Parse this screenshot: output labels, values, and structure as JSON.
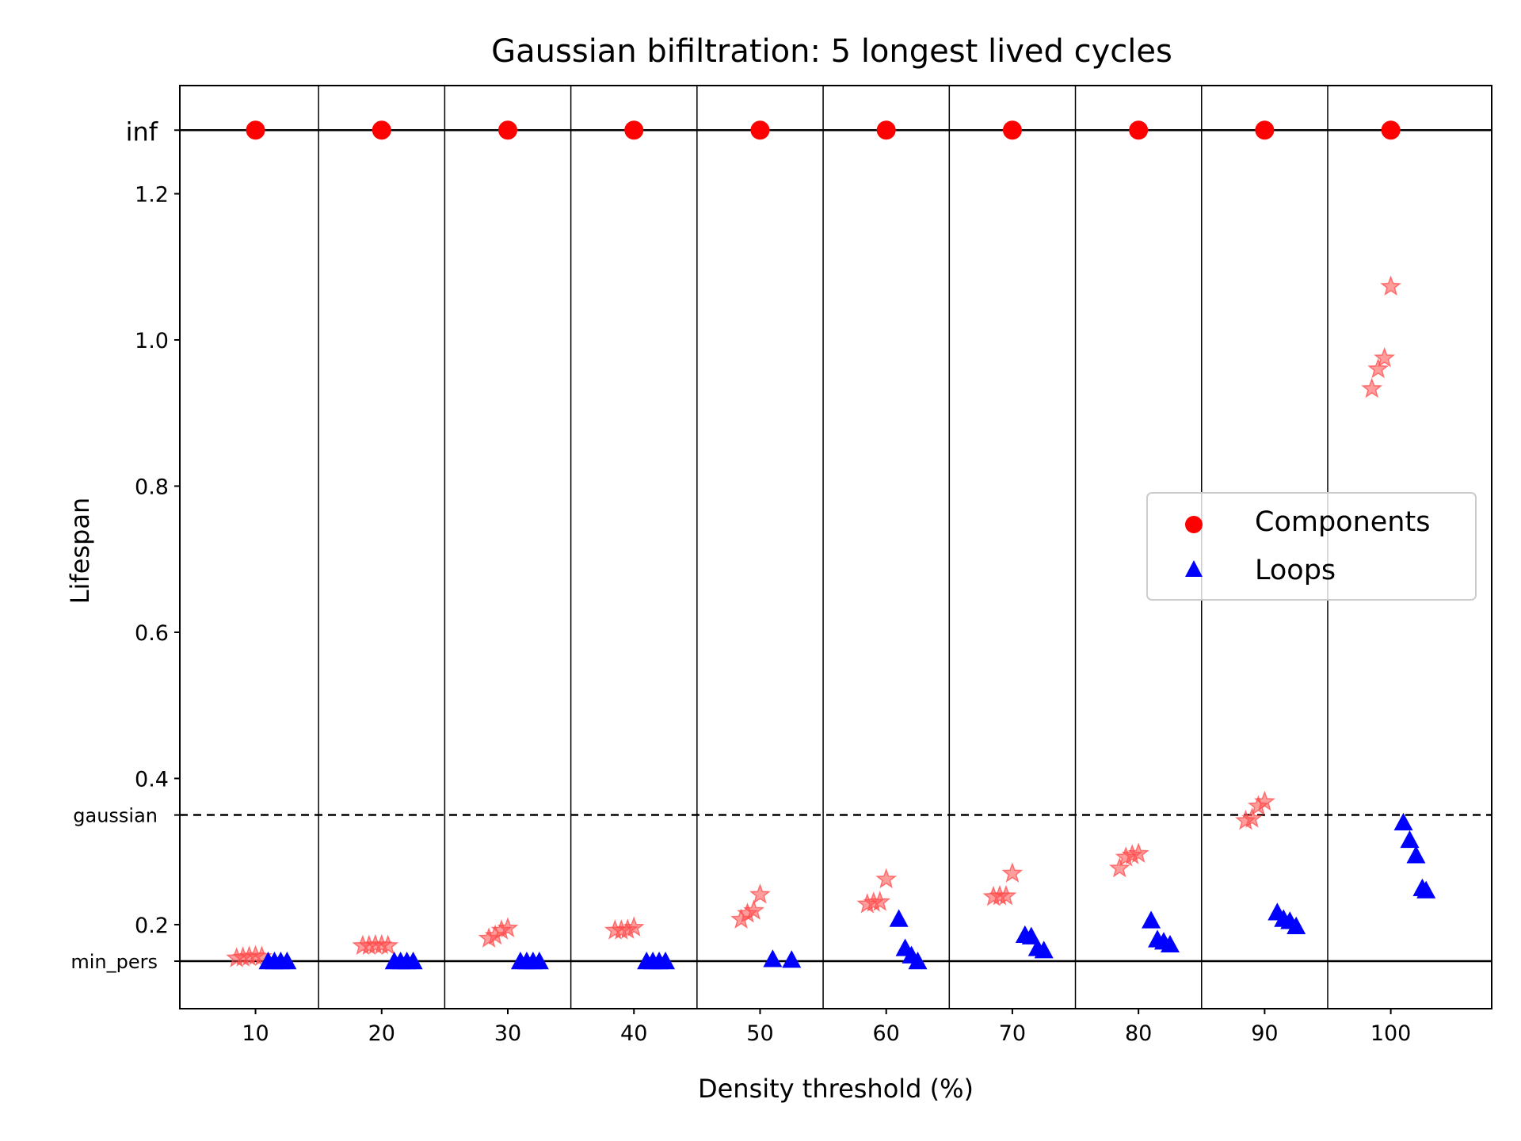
{
  "chart_data": {
    "type": "scatter",
    "title": "Gaussian bifiltration: 5 longest lived cycles",
    "xlabel": "Density threshold (%)",
    "ylabel": "Lifespan",
    "xlim": [
      4,
      108
    ],
    "ylim": [
      0.085,
      1.348
    ],
    "xticks": [
      10,
      20,
      30,
      40,
      50,
      60,
      70,
      80,
      90,
      100
    ],
    "yticks": [
      0.2,
      0.4,
      0.6,
      0.8,
      1.0,
      1.2
    ],
    "ytick_labels": [
      "0.2",
      "0.4",
      "0.6",
      "0.8",
      "1.0",
      "1.2"
    ],
    "group_separators": [
      15,
      25,
      35,
      45,
      55,
      65,
      75,
      85,
      95
    ],
    "reference_lines": [
      {
        "name": "inf",
        "label": "inf",
        "y": 1.287,
        "style": "solid"
      },
      {
        "name": "gaussian",
        "label": "gaussian",
        "y": 0.35,
        "style": "dashed"
      },
      {
        "name": "min_pers",
        "label": "min_pers",
        "y": 0.15,
        "style": "solid"
      }
    ],
    "legend": {
      "position": "center-right",
      "entries": [
        {
          "label": "Components",
          "marker": "circle",
          "color": "#ff0000"
        },
        {
          "label": "Loops",
          "marker": "triangle",
          "color": "#0000ff"
        }
      ]
    },
    "series": [
      {
        "name": "Components (infinite)",
        "marker": "circle",
        "color": "#ff0000",
        "points": [
          [
            10,
            1.287
          ],
          [
            20,
            1.287
          ],
          [
            30,
            1.287
          ],
          [
            40,
            1.287
          ],
          [
            50,
            1.287
          ],
          [
            60,
            1.287
          ],
          [
            70,
            1.287
          ],
          [
            80,
            1.287
          ],
          [
            90,
            1.287
          ],
          [
            100,
            1.287
          ]
        ]
      },
      {
        "name": "Components (finite)",
        "marker": "star",
        "color": "#ff4d4d",
        "points": [
          [
            8.5,
            0.154
          ],
          [
            9.0,
            0.155
          ],
          [
            9.5,
            0.156
          ],
          [
            10.0,
            0.157
          ],
          [
            10.5,
            0.156
          ],
          [
            18.5,
            0.171
          ],
          [
            19.0,
            0.171
          ],
          [
            19.5,
            0.172
          ],
          [
            20.0,
            0.172
          ],
          [
            20.5,
            0.171
          ],
          [
            28.5,
            0.181
          ],
          [
            29.0,
            0.185
          ],
          [
            29.5,
            0.192
          ],
          [
            30.0,
            0.195
          ],
          [
            38.5,
            0.192
          ],
          [
            39.0,
            0.192
          ],
          [
            39.5,
            0.193
          ],
          [
            40.0,
            0.196
          ],
          [
            48.5,
            0.207
          ],
          [
            49.0,
            0.215
          ],
          [
            49.5,
            0.219
          ],
          [
            50.0,
            0.241
          ],
          [
            58.5,
            0.228
          ],
          [
            59.0,
            0.23
          ],
          [
            59.5,
            0.231
          ],
          [
            60.0,
            0.262
          ],
          [
            68.5,
            0.238
          ],
          [
            69.0,
            0.239
          ],
          [
            69.5,
            0.239
          ],
          [
            70.0,
            0.27
          ],
          [
            78.5,
            0.277
          ],
          [
            79.0,
            0.292
          ],
          [
            79.5,
            0.295
          ],
          [
            80.0,
            0.297
          ],
          [
            88.5,
            0.342
          ],
          [
            89.0,
            0.345
          ],
          [
            89.5,
            0.362
          ],
          [
            90.0,
            0.368
          ],
          [
            98.5,
            0.933
          ],
          [
            99.0,
            0.96
          ],
          [
            99.5,
            0.975
          ],
          [
            100.0,
            1.073
          ]
        ]
      },
      {
        "name": "Loops",
        "marker": "triangle",
        "color": "#0000ff",
        "points": [
          [
            11.0,
            0.15
          ],
          [
            11.5,
            0.15
          ],
          [
            12.0,
            0.15
          ],
          [
            12.5,
            0.15
          ],
          [
            21.0,
            0.15
          ],
          [
            21.5,
            0.15
          ],
          [
            22.0,
            0.15
          ],
          [
            22.5,
            0.15
          ],
          [
            31.0,
            0.15
          ],
          [
            31.5,
            0.15
          ],
          [
            32.0,
            0.15
          ],
          [
            32.5,
            0.15
          ],
          [
            41.0,
            0.15
          ],
          [
            41.5,
            0.15
          ],
          [
            42.0,
            0.15
          ],
          [
            42.5,
            0.15
          ],
          [
            51.0,
            0.153
          ],
          [
            52.5,
            0.152
          ],
          [
            61.0,
            0.208
          ],
          [
            61.5,
            0.168
          ],
          [
            62.0,
            0.158
          ],
          [
            62.5,
            0.15
          ],
          [
            71.0,
            0.186
          ],
          [
            71.5,
            0.184
          ],
          [
            72.0,
            0.168
          ],
          [
            72.5,
            0.165
          ],
          [
            81.0,
            0.206
          ],
          [
            81.5,
            0.18
          ],
          [
            82.0,
            0.177
          ],
          [
            82.5,
            0.173
          ],
          [
            91.0,
            0.217
          ],
          [
            91.5,
            0.208
          ],
          [
            92.0,
            0.205
          ],
          [
            92.5,
            0.198
          ],
          [
            101.0,
            0.34
          ],
          [
            101.5,
            0.316
          ],
          [
            102.0,
            0.295
          ],
          [
            102.5,
            0.25
          ],
          [
            102.8,
            0.247
          ]
        ]
      }
    ]
  }
}
